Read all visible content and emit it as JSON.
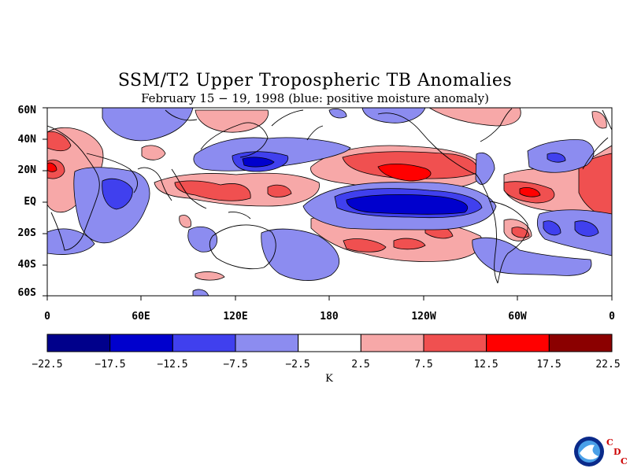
{
  "title": "SSM/T2 Upper Tropospheric TB Anomalies",
  "subtitle": "February 15 − 19, 1998 (blue: positive moisture anomaly)",
  "lat_labels": [
    "60N",
    "40N",
    "20N",
    "EQ",
    "20S",
    "40S",
    "60S"
  ],
  "lon_labels": [
    "0",
    "60E",
    "120E",
    "180",
    "120W",
    "60W",
    "0"
  ],
  "colorbar": {
    "ticks": [
      "−22.5",
      "−17.5",
      "−12.5",
      "−7.5",
      "−2.5",
      "2.5",
      "7.5",
      "12.5",
      "17.5",
      "22.5"
    ],
    "colors": [
      "#00008b",
      "#0000cd",
      "#4040ee",
      "#8c8cf0",
      "#ffffff",
      "#f7a8a8",
      "#f05050",
      "#ff0000",
      "#8b0000"
    ],
    "unit": "K"
  },
  "logo": {
    "name": "noaa-logo",
    "letters": [
      "C",
      "D",
      "C"
    ]
  }
}
